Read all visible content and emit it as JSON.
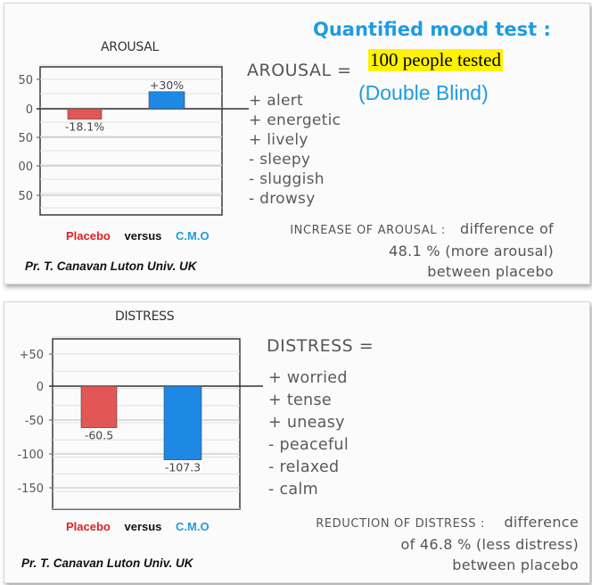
{
  "header": {
    "title": "Quantified mood test :",
    "sample": "100 people tested",
    "design": "(Double Blind)"
  },
  "colors": {
    "placebo": "#e25656",
    "cmo": "#1e88e5",
    "accent": "#1e9ce0"
  },
  "chart_data": [
    {
      "type": "bar",
      "title": "AROUSAL",
      "categories": [
        "Placebo",
        "C.M.O"
      ],
      "values": [
        -18.1,
        30
      ],
      "value_labels": [
        "-18.1%",
        "+30%"
      ],
      "tick_labels": [
        "50",
        "0",
        "50",
        "00",
        "50"
      ],
      "ylim": [
        -150,
        50
      ],
      "grid": true
    },
    {
      "type": "bar",
      "title": "DISTRESS",
      "categories": [
        "Placebo",
        "C.M.O"
      ],
      "values": [
        -60.5,
        -107.3
      ],
      "value_labels": [
        "-60.5",
        "-107.3"
      ],
      "tick_labels": [
        "+50",
        "0",
        "-50",
        "-100",
        "-150"
      ],
      "ylim": [
        -150,
        50
      ],
      "grid": true
    }
  ],
  "arousal": {
    "definition": "AROUSAL =",
    "items": [
      "+ alert",
      "+ energetic",
      "+ lively",
      "- sleepy",
      "- sluggish",
      "- drowsy"
    ],
    "summary_lead": "INCREASE OF AROUSAL :",
    "summary_1": "difference of",
    "summary_2": "48.1 % (more arousal)",
    "summary_3": "between placebo"
  },
  "distress": {
    "definition": "DISTRESS =",
    "items": [
      "+ worried",
      "+ tense",
      "+ uneasy",
      "- peaceful",
      "- relaxed",
      "- calm"
    ],
    "summary_lead": "REDUCTION OF DISTRESS :",
    "summary_1": "difference",
    "summary_2": "of 46.8 % (less distress)",
    "summary_3": "between placebo"
  },
  "legend": {
    "placebo": "Placebo",
    "versus": "versus",
    "cmo": "C.M.O"
  },
  "credit": "Pr. T. Canavan Luton Univ. UK"
}
